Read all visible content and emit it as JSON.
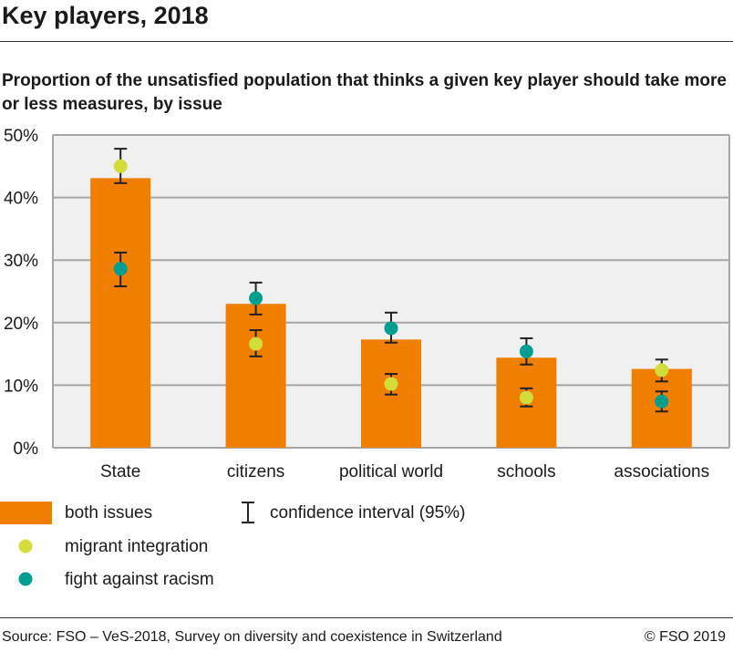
{
  "title": "Key players, 2018",
  "subtitle": "Proportion of the unsatisfied population that thinks a given key player should take more or less measures, by issue",
  "chart_data": {
    "type": "bar",
    "categories": [
      "State",
      "citizens",
      "political world",
      "schools",
      "associations"
    ],
    "ylim": [
      0,
      50
    ],
    "yticks": [
      0,
      10,
      20,
      30,
      40,
      50
    ],
    "ytick_labels": [
      "0%",
      "10%",
      "20%",
      "30%",
      "40%",
      "50%"
    ],
    "grid": true,
    "legend_placement": "bottom",
    "series": [
      {
        "name": "both issues",
        "type": "bar",
        "color": "#f07f00",
        "values": [
          43.1,
          23.0,
          17.3,
          14.4,
          12.6
        ]
      },
      {
        "name": "migrant integration",
        "type": "scatter",
        "color": "#d4dc3c",
        "values": [
          45.0,
          16.6,
          10.2,
          8.0,
          12.4
        ],
        "ci_low": [
          42.3,
          14.6,
          8.5,
          6.6,
          10.6
        ],
        "ci_high": [
          47.8,
          18.8,
          11.8,
          9.5,
          14.1
        ]
      },
      {
        "name": "fight against racism",
        "type": "scatter",
        "color": "#009e8e",
        "values": [
          28.6,
          23.9,
          19.1,
          15.4,
          7.4
        ],
        "ci_low": [
          25.8,
          21.3,
          16.8,
          13.3,
          5.8
        ],
        "ci_high": [
          31.2,
          26.4,
          21.6,
          17.5,
          9.0
        ]
      }
    ],
    "ci_label": "confidence interval (95%)"
  },
  "source": "Source: FSO – VeS-2018, Survey on diversity and coexistence in Switzerland",
  "copyright": "© FSO 2019"
}
